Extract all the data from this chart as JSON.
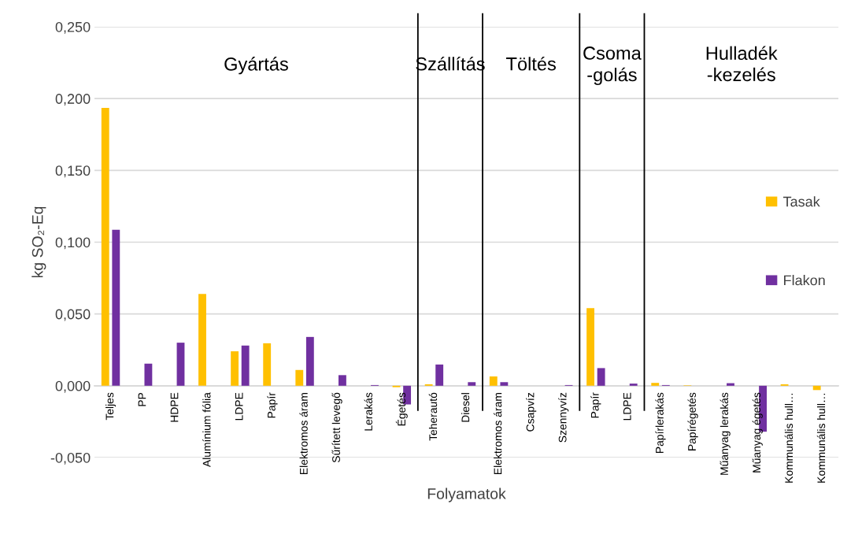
{
  "chart_data": {
    "type": "bar",
    "xlabel": "Folyamatok",
    "ylabel": "kg SO₂-Eq",
    "categories": [
      "Teljes",
      "PP",
      "HDPE",
      "Alumínium fólia",
      "LDPE",
      "Papír",
      "Elektromos áram",
      "Sűrített levegő",
      "Lerakás",
      "Égetés",
      "Teherautó",
      "Diesel",
      "Elektromos áram",
      "Csapvíz",
      "Szennyvíz",
      "Papír",
      "LDPE",
      "Papírlerakás",
      "Papírégetés",
      "Műanyag lerakás",
      "Műanyag égetés",
      "Kommunális hull…",
      "Kommunális hull…"
    ],
    "series": [
      {
        "name": "Tasak",
        "color": "#ffc000",
        "values": [
          0.1935,
          null,
          null,
          0.064,
          0.024,
          0.0296,
          0.011,
          null,
          null,
          -0.001,
          0.001,
          null,
          0.0065,
          null,
          null,
          0.054,
          null,
          0.002,
          0.0003,
          null,
          null,
          0.001,
          -0.003
        ]
      },
      {
        "name": "Flakon",
        "color": "#7030a0",
        "values": [
          0.1086,
          0.0154,
          0.03,
          null,
          0.028,
          null,
          0.034,
          0.0074,
          0.0005,
          -0.013,
          0.0148,
          0.0025,
          0.0025,
          null,
          0.0005,
          0.0123,
          0.0015,
          0.0005,
          null,
          0.0018,
          -0.032,
          null,
          null
        ]
      }
    ],
    "ylim": [
      -0.05,
      0.25
    ],
    "yticks": [
      {
        "value": -0.05,
        "label": "-0,050"
      },
      {
        "value": 0,
        "label": "0,000"
      },
      {
        "value": 0.05,
        "label": "0,050"
      },
      {
        "value": 0.1,
        "label": "0,100"
      },
      {
        "value": 0.15,
        "label": "0,150"
      },
      {
        "value": 0.2,
        "label": "0,200"
      },
      {
        "value": 0.25,
        "label": "0,250"
      }
    ],
    "grid": "y",
    "legend": "right",
    "annotations": [
      "Gyártás",
      "Szállítás",
      "Töltés",
      "Csoma\n-golás",
      "Hulladék\n-kezelés"
    ]
  }
}
